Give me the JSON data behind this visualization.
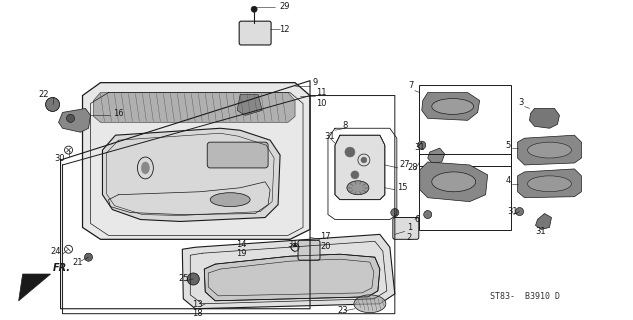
{
  "bg_color": "#ffffff",
  "line_color": "#1a1a1a",
  "figsize": [
    6.33,
    3.2
  ],
  "dpi": 100,
  "diagram_code": "ST83-  B3910 D"
}
